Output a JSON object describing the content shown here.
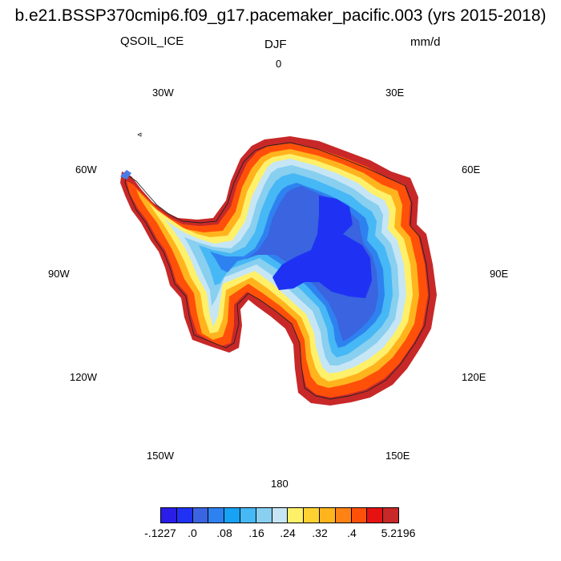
{
  "header": {
    "title": "b.e21.BSSP370cmip6.f09_g17.pacemaker_pacific.003 (yrs 2015-2018)",
    "variable": "QSOIL_ICE",
    "season": "DJF",
    "units": "mm/d"
  },
  "map": {
    "projection": "south-polar-stereographic",
    "region": "Antarctica",
    "longitude_labels": {
      "lon_0": "0",
      "lon_30e": "30E",
      "lon_60e": "60E",
      "lon_90e": "90E",
      "lon_120e": "120E",
      "lon_150e": "150E",
      "lon_180": "180",
      "lon_150w": "150W",
      "lon_120w": "120W",
      "lon_90w": "90W",
      "lon_60w": "60W",
      "lon_30w": "30W"
    }
  },
  "colorbar": {
    "colors": [
      "#2a1de8",
      "#1f32f4",
      "#3a64e0",
      "#2e82f0",
      "#17a2f5",
      "#46b8f5",
      "#88cff0",
      "#c6e6f5",
      "#fff06a",
      "#ffd232",
      "#ffb41e",
      "#ff8214",
      "#ff500a",
      "#e61212",
      "#c82828"
    ],
    "labels": [
      "-.1227",
      ".0",
      ".08",
      ".16",
      ".24",
      ".32",
      ".4",
      "5.2196"
    ]
  }
}
